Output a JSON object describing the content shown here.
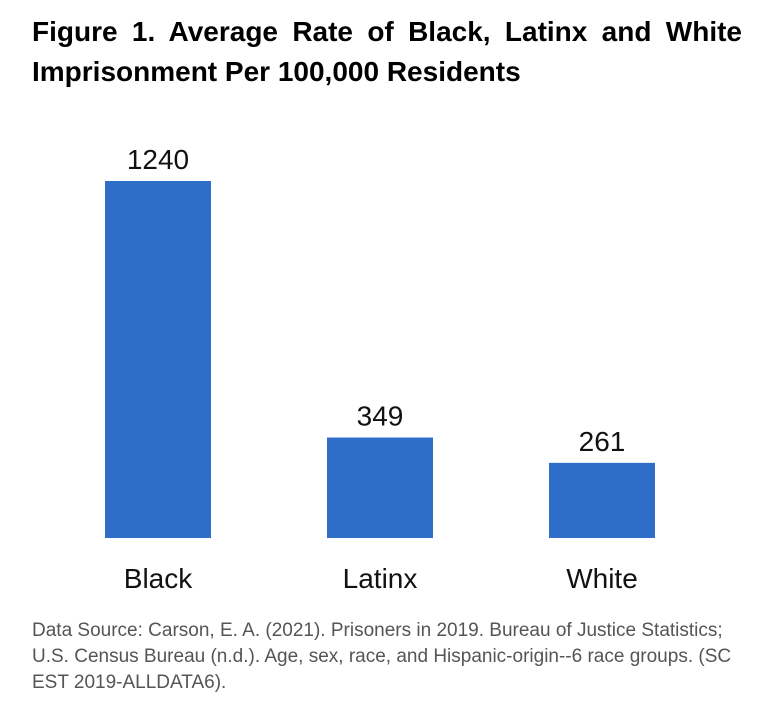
{
  "chart_data": {
    "type": "bar",
    "title": "Figure 1. Average Rate of Black, Latinx and White Imprisonment Per 100,000 Residents",
    "categories": [
      "Black",
      "Latinx",
      "White"
    ],
    "values": [
      1240,
      349,
      261
    ],
    "ylim": [
      0,
      1240
    ],
    "xlabel": "",
    "ylabel": "",
    "bar_color": "#2f6ec8",
    "source": "Data Source: Carson, E. A. (2021). Prisoners in 2019. Bureau of Justice Statistics; U.S. Census Bureau (n.d.). Age, sex, race, and Hispanic-origin--6 race groups. (SC EST 2019-ALLDATA6)."
  }
}
